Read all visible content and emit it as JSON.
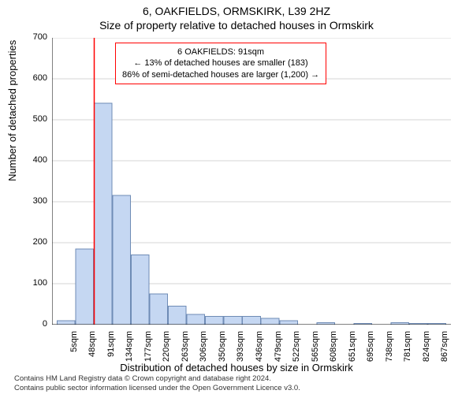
{
  "title": "6, OAKFIELDS, ORMSKIRK, L39 2HZ",
  "subtitle": "Size of property relative to detached houses in Ormskirk",
  "ylabel": "Number of detached properties",
  "xlabel": "Distribution of detached houses by size in Ormskirk",
  "footer_line1": "Contains HM Land Registry data © Crown copyright and database right 2024.",
  "footer_line2": "Contains public sector information licensed under the Open Government Licence v3.0.",
  "chart": {
    "type": "histogram",
    "y": {
      "min": 0,
      "max": 700,
      "ticks": [
        0,
        100,
        200,
        300,
        400,
        500,
        600,
        700
      ],
      "tick_labels": [
        "0",
        "100",
        "200",
        "300",
        "400",
        "500",
        "600",
        "700"
      ]
    },
    "x": {
      "tick_labels": [
        "5sqm",
        "48sqm",
        "91sqm",
        "134sqm",
        "177sqm",
        "220sqm",
        "263sqm",
        "306sqm",
        "350sqm",
        "393sqm",
        "436sqm",
        "479sqm",
        "522sqm",
        "565sqm",
        "608sqm",
        "651sqm",
        "695sqm",
        "738sqm",
        "781sqm",
        "824sqm",
        "867sqm"
      ]
    },
    "bars": [
      10,
      185,
      540,
      315,
      170,
      75,
      45,
      25,
      20,
      20,
      20,
      15,
      10,
      0,
      5,
      0,
      3,
      0,
      5,
      3,
      3
    ],
    "bar_fill": "#c5d7f2",
    "bar_stroke": "#6e8bb5",
    "grid_color": "#d6d6d6",
    "plot_bg": "#ffffff",
    "marker": {
      "bin_index": 2,
      "color": "#ff0000"
    },
    "annotation": {
      "border_color": "#ff0000",
      "lines": [
        "6 OAKFIELDS: 91sqm",
        "← 13% of detached houses are smaller (183)",
        "86% of semi-detached houses are larger (1,200) →"
      ]
    }
  }
}
